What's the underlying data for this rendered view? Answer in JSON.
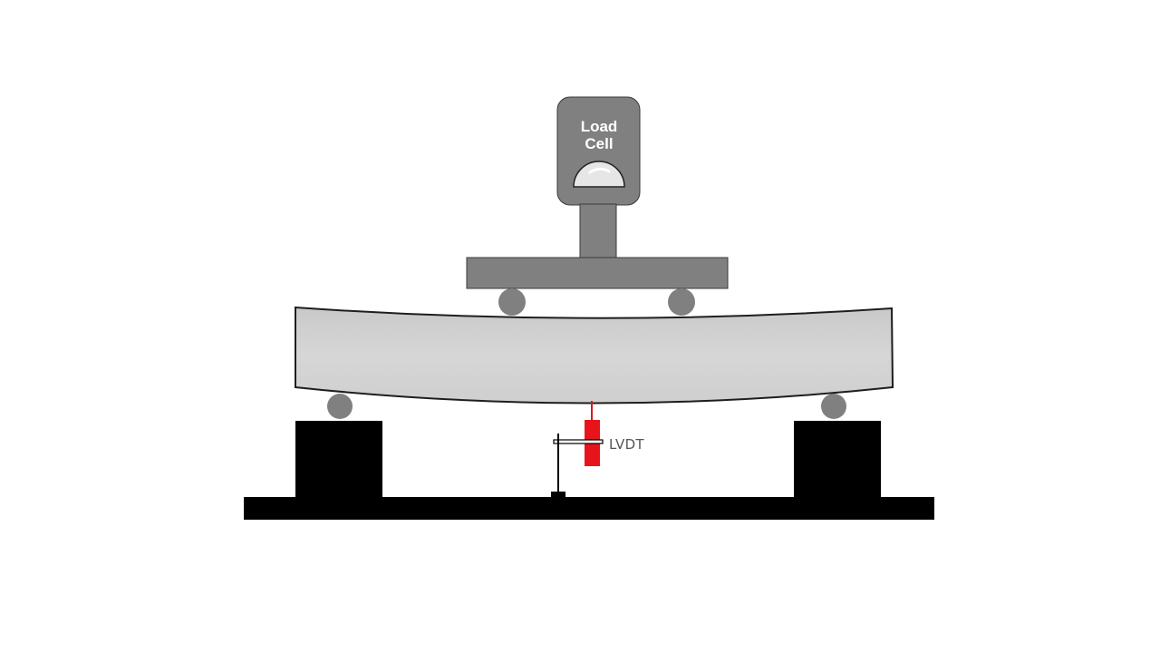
{
  "diagram": {
    "load_cell": {
      "line1": "Load",
      "line2": "Cell"
    },
    "sensor_label": "LVDT"
  }
}
